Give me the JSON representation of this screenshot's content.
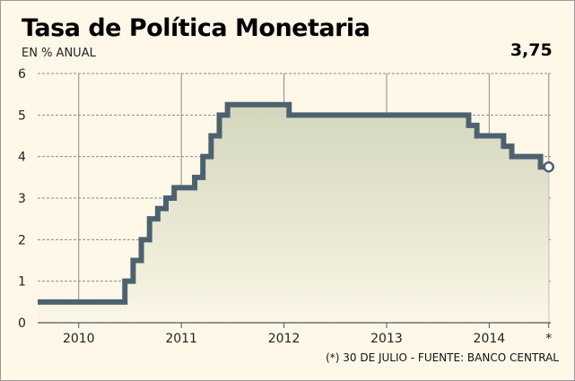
{
  "chart_data": {
    "type": "line",
    "title": "Tasa de Política Monetaria",
    "subtitle": "EN % ANUAL",
    "footnote": "(*) 30 DE JULIO - FUENTE: BANCO CENTRAL",
    "xlim": [
      2009.6,
      2014.6
    ],
    "ylim": [
      0,
      6
    ],
    "yticks": [
      0,
      1,
      2,
      3,
      4,
      5,
      6
    ],
    "xticks": [
      {
        "value": 2010,
        "label": "2010"
      },
      {
        "value": 2011,
        "label": "2011"
      },
      {
        "value": 2012,
        "label": "2012"
      },
      {
        "value": 2013,
        "label": "2013"
      },
      {
        "value": 2014,
        "label": "2014"
      },
      {
        "value": 2014.58,
        "label": "*"
      }
    ],
    "last_value_label": "3,75",
    "grid": true,
    "series": [
      {
        "color": "#4d6270",
        "step": true,
        "points": [
          [
            2009.6,
            0.5
          ],
          [
            2010.45,
            1.0
          ],
          [
            2010.53,
            1.5
          ],
          [
            2010.61,
            2.0
          ],
          [
            2010.69,
            2.5
          ],
          [
            2010.77,
            2.75
          ],
          [
            2010.85,
            3.0
          ],
          [
            2010.93,
            3.25
          ],
          [
            2011.13,
            3.5
          ],
          [
            2011.21,
            4.0
          ],
          [
            2011.29,
            4.5
          ],
          [
            2011.37,
            5.0
          ],
          [
            2011.45,
            5.25
          ],
          [
            2012.05,
            5.0
          ],
          [
            2013.8,
            4.75
          ],
          [
            2013.88,
            4.5
          ],
          [
            2014.14,
            4.25
          ],
          [
            2014.22,
            4.0
          ],
          [
            2014.5,
            3.75
          ],
          [
            2014.58,
            3.75
          ]
        ]
      }
    ]
  }
}
